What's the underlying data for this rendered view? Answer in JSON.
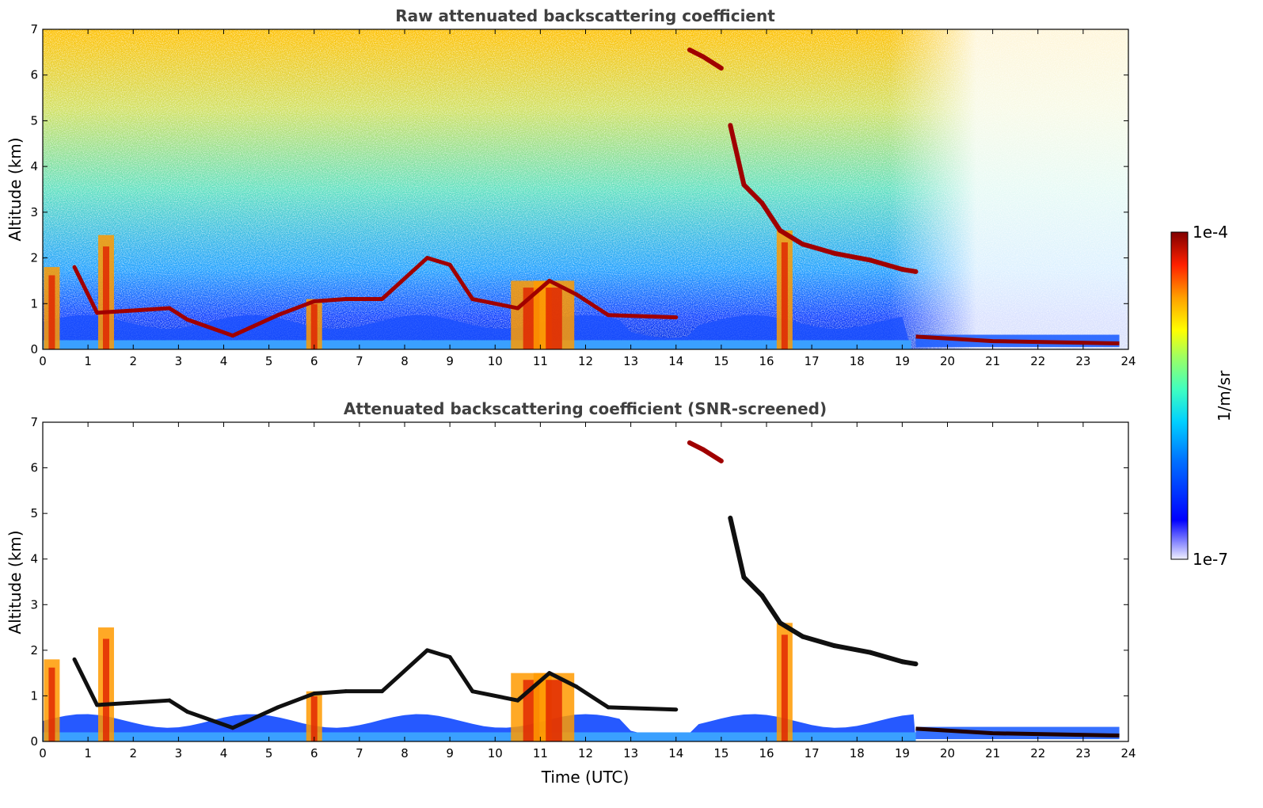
{
  "chart_data": [
    {
      "type": "heatmap",
      "title": "Raw attenuated backscattering coefficient",
      "xlabel": "",
      "ylabel": "Altitude (km)",
      "xlim": [
        0,
        24
      ],
      "ylim": [
        0,
        7
      ],
      "xticks": [
        "0",
        "1",
        "2",
        "3",
        "4",
        "5",
        "6",
        "7",
        "8",
        "9",
        "10",
        "11",
        "12",
        "13",
        "14",
        "15",
        "16",
        "17",
        "18",
        "19",
        "20",
        "21",
        "22",
        "23",
        "24"
      ],
      "yticks": [
        "0",
        "1",
        "2",
        "3",
        "4",
        "5",
        "6",
        "7"
      ],
      "grid": false,
      "screened": false,
      "features": {
        "clear_air_signal_until_hour": 23.8,
        "upper_cloud_layer": [
          [
            14.3,
            6.55
          ],
          [
            14.6,
            6.4
          ],
          [
            15.0,
            6.15
          ],
          [
            15.2,
            4.9
          ],
          [
            15.5,
            3.6
          ],
          [
            15.9,
            3.2
          ],
          [
            16.3,
            2.6
          ],
          [
            16.8,
            2.3
          ],
          [
            17.5,
            2.1
          ],
          [
            18.3,
            1.95
          ],
          [
            19.0,
            1.75
          ],
          [
            19.3,
            1.7
          ]
        ],
        "low_cloud_segments": [
          [
            0.7,
            1.8
          ],
          [
            1.2,
            0.8
          ],
          [
            2.0,
            0.85
          ],
          [
            2.8,
            0.9
          ],
          [
            3.2,
            0.65
          ],
          [
            4.2,
            0.3
          ],
          [
            5.2,
            0.75
          ],
          [
            6.0,
            1.05
          ],
          [
            6.7,
            1.1
          ],
          [
            7.5,
            1.1
          ],
          [
            8.5,
            2.0
          ],
          [
            9.0,
            1.85
          ],
          [
            9.5,
            1.1
          ],
          [
            10.5,
            0.9
          ],
          [
            11.2,
            1.5
          ],
          [
            11.8,
            1.2
          ],
          [
            12.5,
            0.75
          ],
          [
            14.0,
            0.7
          ]
        ],
        "precipitation_columns": [
          0.2,
          1.4,
          6.0,
          10.8,
          11.3,
          16.4
        ]
      }
    },
    {
      "type": "heatmap",
      "title": "Attenuated backscattering coefficient (SNR-screened)",
      "xlabel": "Time (UTC)",
      "ylabel": "Altitude (km)",
      "xlim": [
        0,
        24
      ],
      "ylim": [
        0,
        7
      ],
      "xticks": [
        "0",
        "1",
        "2",
        "3",
        "4",
        "5",
        "6",
        "7",
        "8",
        "9",
        "10",
        "11",
        "12",
        "13",
        "14",
        "15",
        "16",
        "17",
        "18",
        "19",
        "20",
        "21",
        "22",
        "23",
        "24"
      ],
      "yticks": [
        "0",
        "1",
        "2",
        "3",
        "4",
        "5",
        "6",
        "7"
      ],
      "grid": false,
      "screened": true
    }
  ],
  "colorbar": {
    "label": "1/m/sr",
    "max_label": "1e-4",
    "min_label": "1e-7",
    "scale": "log",
    "range": [
      1e-07,
      0.0001
    ],
    "colormap": [
      "#ffffff",
      "#0000ff",
      "#00a0ff",
      "#00e0e0",
      "#80ff80",
      "#ffff00",
      "#ff8000",
      "#ff0000",
      "#800000"
    ]
  }
}
